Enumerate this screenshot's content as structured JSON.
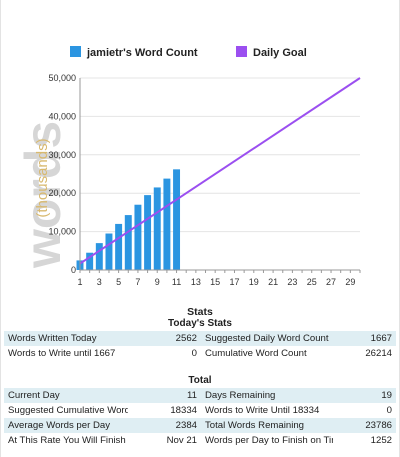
{
  "chart_data": {
    "type": "bar",
    "ylabel": "(thousands)",
    "watermark": "words",
    "ylim": [
      0,
      50000
    ],
    "xlim": [
      1,
      30
    ],
    "ytick_labels": [
      "0",
      "10,000",
      "20,000",
      "30,000",
      "40,000",
      "50,000"
    ],
    "xtick_labels": [
      "1",
      "3",
      "5",
      "7",
      "9",
      "11",
      "13",
      "15",
      "17",
      "19",
      "21",
      "23",
      "25",
      "27",
      "29"
    ],
    "grid": true,
    "legend_position": "top",
    "series": [
      {
        "name": "jamietr's Word Count",
        "type": "bar",
        "color": "#2b95e1",
        "x": [
          1,
          2,
          3,
          4,
          5,
          6,
          7,
          8,
          9,
          10,
          11
        ],
        "values": [
          2500,
          4500,
          7000,
          9500,
          12000,
          14300,
          17000,
          19500,
          21500,
          23800,
          26214
        ]
      },
      {
        "name": "Daily Goal",
        "type": "line",
        "color": "#9b4ff0",
        "x": [
          1,
          30
        ],
        "values": [
          1667,
          50000
        ]
      }
    ]
  },
  "stats": {
    "title": "Stats",
    "today": {
      "title": "Today's Stats",
      "rows": [
        {
          "label1": "Words Written Today",
          "value1": "2562",
          "label2": "Suggested Daily Word Count",
          "value2": "1667"
        },
        {
          "label1": "Words to Write until 1667",
          "value1": "0",
          "label2": "Cumulative Word Count",
          "value2": "26214"
        }
      ]
    },
    "total": {
      "title": "Total",
      "rows": [
        {
          "label1": "Current Day",
          "value1": "11",
          "label2": "Days Remaining",
          "value2": "19"
        },
        {
          "label1": "Suggested Cumulative Word Count",
          "value1": "18334",
          "label2": "Words to Write Until 18334",
          "value2": "0"
        },
        {
          "label1": "Average Words per Day",
          "value1": "2384",
          "label2": "Total Words Remaining",
          "value2": "23786"
        },
        {
          "label1": "At This Rate You Will Finish On",
          "value1": "Nov 21",
          "label2": "Words per Day to Finish on Time",
          "value2": "1252"
        }
      ]
    }
  }
}
